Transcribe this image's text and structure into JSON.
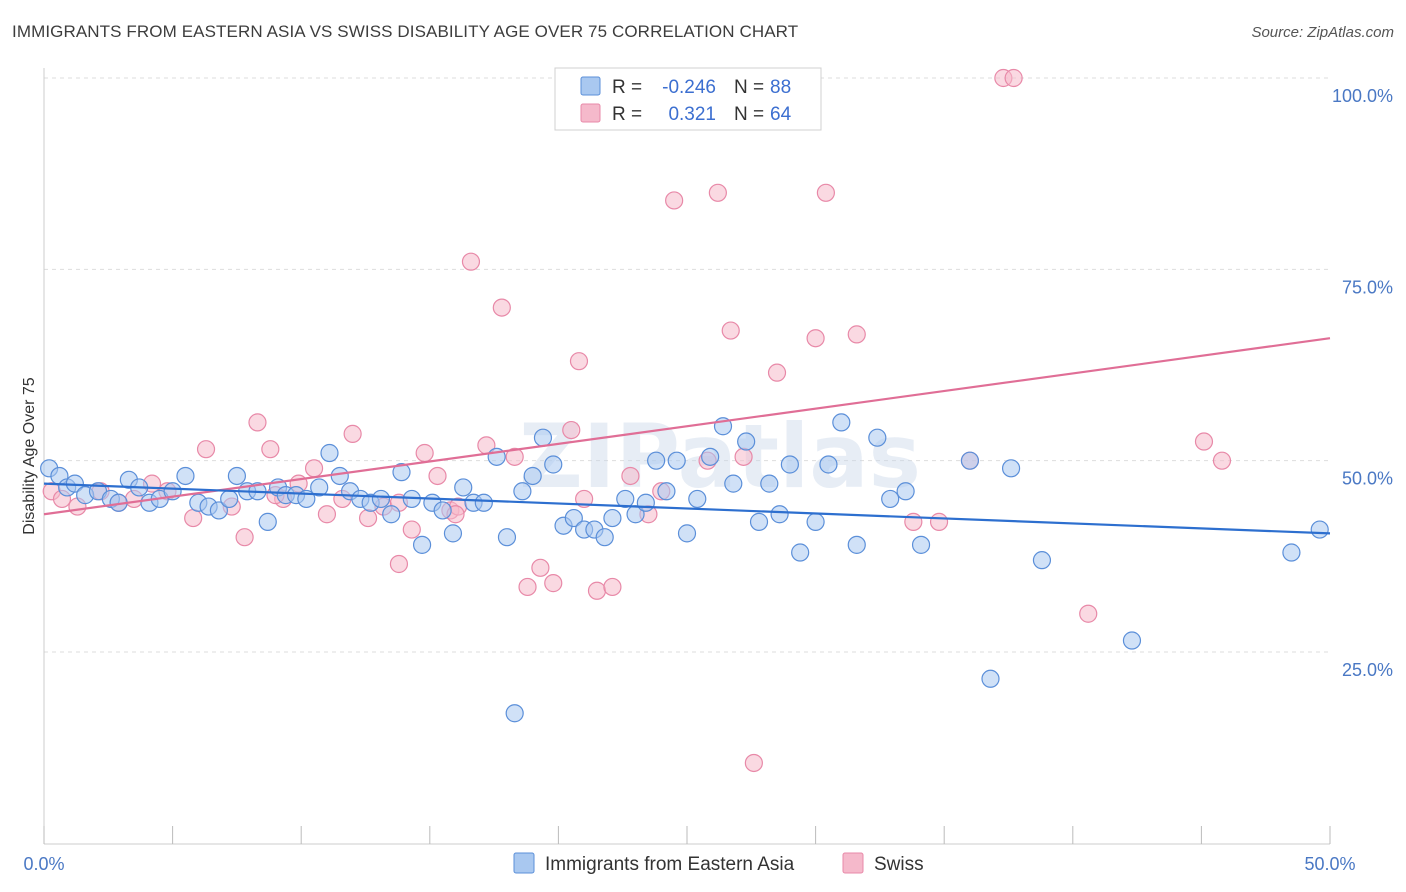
{
  "title": "IMMIGRANTS FROM EASTERN ASIA VS SWISS DISABILITY AGE OVER 75 CORRELATION CHART",
  "source": "Source: ZipAtlas.com",
  "watermark": "ZIPatlas",
  "colors": {
    "blue_fill": "#a9c8f0",
    "blue_stroke": "#5b8fd9",
    "blue_line": "#2d6fcf",
    "pink_fill": "#f5b9cb",
    "pink_stroke": "#e889a8",
    "pink_line": "#e06e96",
    "tick_label": "#4a78c4",
    "grid": "#dddddd"
  },
  "legend": {
    "rows": [
      {
        "r_label": "R =",
        "r_value": "-0.246",
        "n_label": "N =",
        "n_value": "88",
        "color": "blue"
      },
      {
        "r_label": "R =",
        "r_value": "0.321",
        "n_label": "N =",
        "n_value": "64",
        "color": "pink"
      }
    ]
  },
  "bottom_legend": [
    "Immigrants from Eastern Asia",
    "Swiss"
  ],
  "chart_data": {
    "type": "scatter",
    "title": "IMMIGRANTS FROM EASTERN ASIA VS SWISS DISABILITY AGE OVER 75 CORRELATION CHART",
    "xlabel": "",
    "ylabel": "Disability Age Over 75",
    "xlim": [
      0,
      50
    ],
    "ylim": [
      0,
      105
    ],
    "x_tick_labels": [
      "0.0%",
      "50.0%"
    ],
    "y_ticks": [
      25,
      50,
      75,
      100
    ],
    "y_tick_labels": [
      "25.0%",
      "50.0%",
      "75.0%",
      "100.0%"
    ],
    "grid": true,
    "legend_position": "top-center",
    "series": [
      {
        "name": "Immigrants from Eastern Asia",
        "color": "blue",
        "trend": {
          "x": [
            0,
            50
          ],
          "y": [
            47.0,
            40.5
          ]
        },
        "points": [
          [
            0.2,
            49
          ],
          [
            0.6,
            48
          ],
          [
            0.9,
            46.5
          ],
          [
            1.2,
            47
          ],
          [
            1.6,
            45.5
          ],
          [
            2.1,
            46
          ],
          [
            2.6,
            45
          ],
          [
            2.9,
            44.5
          ],
          [
            3.3,
            47.5
          ],
          [
            3.7,
            46.5
          ],
          [
            4.1,
            44.5
          ],
          [
            4.5,
            45
          ],
          [
            5.0,
            46
          ],
          [
            5.5,
            48
          ],
          [
            6.0,
            44.5
          ],
          [
            6.4,
            44
          ],
          [
            6.8,
            43.5
          ],
          [
            7.2,
            45
          ],
          [
            7.5,
            48
          ],
          [
            7.9,
            46
          ],
          [
            8.3,
            46
          ],
          [
            8.7,
            42
          ],
          [
            9.1,
            46.5
          ],
          [
            9.4,
            45.5
          ],
          [
            9.8,
            45.5
          ],
          [
            10.2,
            45
          ],
          [
            10.7,
            46.5
          ],
          [
            11.1,
            51
          ],
          [
            11.5,
            48
          ],
          [
            11.9,
            46
          ],
          [
            12.3,
            45
          ],
          [
            12.7,
            44.5
          ],
          [
            13.1,
            45
          ],
          [
            13.5,
            43
          ],
          [
            13.9,
            48.5
          ],
          [
            14.3,
            45
          ],
          [
            14.7,
            39
          ],
          [
            15.1,
            44.5
          ],
          [
            15.5,
            43.5
          ],
          [
            15.9,
            40.5
          ],
          [
            16.3,
            46.5
          ],
          [
            16.7,
            44.5
          ],
          [
            17.1,
            44.5
          ],
          [
            17.6,
            50.5
          ],
          [
            18.0,
            40
          ],
          [
            18.3,
            17
          ],
          [
            18.6,
            46
          ],
          [
            19.0,
            48
          ],
          [
            19.4,
            53
          ],
          [
            19.8,
            49.5
          ],
          [
            20.2,
            41.5
          ],
          [
            20.6,
            42.5
          ],
          [
            21.0,
            41
          ],
          [
            21.4,
            41
          ],
          [
            21.8,
            40
          ],
          [
            22.1,
            42.5
          ],
          [
            22.6,
            45
          ],
          [
            23.0,
            43
          ],
          [
            23.4,
            44.5
          ],
          [
            23.8,
            50
          ],
          [
            24.2,
            46
          ],
          [
            24.6,
            50
          ],
          [
            25.0,
            40.5
          ],
          [
            25.4,
            45
          ],
          [
            25.9,
            50.5
          ],
          [
            26.4,
            54.5
          ],
          [
            26.8,
            47
          ],
          [
            27.3,
            52.5
          ],
          [
            27.8,
            42
          ],
          [
            28.2,
            47
          ],
          [
            28.6,
            43
          ],
          [
            29.0,
            49.5
          ],
          [
            29.4,
            38
          ],
          [
            30.0,
            42
          ],
          [
            30.5,
            49.5
          ],
          [
            31.0,
            55
          ],
          [
            31.6,
            39
          ],
          [
            32.4,
            53
          ],
          [
            32.9,
            45
          ],
          [
            33.5,
            46
          ],
          [
            34.1,
            39
          ],
          [
            36.0,
            50
          ],
          [
            36.8,
            21.5
          ],
          [
            37.6,
            49
          ],
          [
            38.8,
            37
          ],
          [
            42.3,
            26.5
          ],
          [
            48.5,
            38
          ],
          [
            49.6,
            41
          ]
        ]
      },
      {
        "name": "Swiss",
        "color": "pink",
        "trend": {
          "x": [
            0,
            50
          ],
          "y": [
            43.0,
            66.0
          ]
        },
        "points": [
          [
            0.3,
            46
          ],
          [
            0.7,
            45
          ],
          [
            1.3,
            44
          ],
          [
            2.2,
            46
          ],
          [
            2.9,
            44.5
          ],
          [
            3.5,
            45
          ],
          [
            4.2,
            47
          ],
          [
            4.8,
            46
          ],
          [
            5.8,
            42.5
          ],
          [
            6.3,
            51.5
          ],
          [
            7.3,
            44
          ],
          [
            7.8,
            40
          ],
          [
            8.3,
            55
          ],
          [
            8.8,
            51.5
          ],
          [
            9.3,
            45
          ],
          [
            9.9,
            47
          ],
          [
            10.5,
            49
          ],
          [
            11.0,
            43
          ],
          [
            11.6,
            45
          ],
          [
            12.0,
            53.5
          ],
          [
            12.6,
            42.5
          ],
          [
            13.2,
            44
          ],
          [
            13.8,
            36.5
          ],
          [
            14.3,
            41
          ],
          [
            14.8,
            51
          ],
          [
            15.3,
            48
          ],
          [
            15.8,
            43.5
          ],
          [
            16.1,
            44
          ],
          [
            16.6,
            76
          ],
          [
            17.2,
            52
          ],
          [
            17.8,
            70
          ],
          [
            18.3,
            50.5
          ],
          [
            18.8,
            33.5
          ],
          [
            19.3,
            36
          ],
          [
            19.8,
            34
          ],
          [
            20.5,
            54
          ],
          [
            20.8,
            63
          ],
          [
            21.5,
            33
          ],
          [
            22.1,
            33.5
          ],
          [
            22.8,
            48
          ],
          [
            23.5,
            43
          ],
          [
            24.5,
            84
          ],
          [
            25.8,
            50
          ],
          [
            26.2,
            85
          ],
          [
            26.7,
            67
          ],
          [
            27.2,
            50.5
          ],
          [
            27.6,
            10.5
          ],
          [
            28.5,
            61.5
          ],
          [
            30.0,
            66
          ],
          [
            30.4,
            85
          ],
          [
            31.6,
            66.5
          ],
          [
            33.8,
            42
          ],
          [
            34.8,
            42
          ],
          [
            37.3,
            100
          ],
          [
            37.7,
            100
          ],
          [
            36.0,
            50
          ],
          [
            45.1,
            52.5
          ],
          [
            45.8,
            50
          ],
          [
            40.6,
            30
          ],
          [
            13.8,
            44.5
          ],
          [
            16.0,
            43
          ],
          [
            24.0,
            46
          ],
          [
            21.0,
            45
          ],
          [
            9.0,
            45.5
          ]
        ]
      }
    ]
  }
}
